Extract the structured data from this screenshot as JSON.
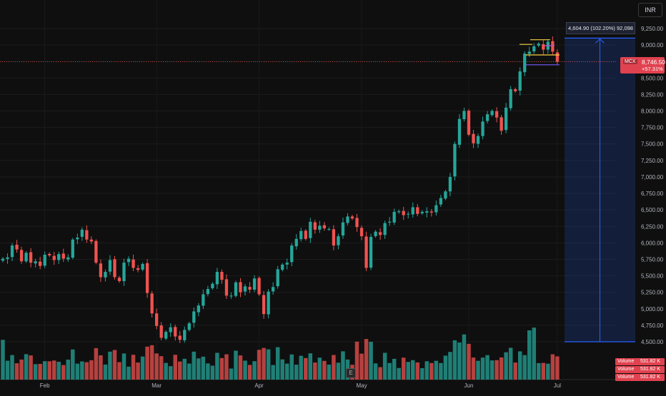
{
  "currency_label": "INR",
  "symbol": "MCX",
  "last_price": "8,746.50",
  "last_change": "+57.31%",
  "measure_label": "4,604.90 (102.20%) 92,098",
  "volume_tags": [
    {
      "label": "Volume",
      "value": "531.82 K"
    },
    {
      "label": "Volume",
      "value": "531.82 K"
    },
    {
      "label": "Volume",
      "value": "531.82 K"
    }
  ],
  "earnings_icon": "E",
  "colors": {
    "up": "#26a69a",
    "down": "#ef5350",
    "measure": "#2962ff",
    "background": "#0f0f0f"
  },
  "chart_data": {
    "type": "candlestick",
    "y_ticks": [
      "4,500.00",
      "4,750.00",
      "5,000.00",
      "5,250.00",
      "5,500.00",
      "5,750.00",
      "6,000.00",
      "6,250.00",
      "6,500.00",
      "6,750.00",
      "7,000.00",
      "7,250.00",
      "7,500.00",
      "7,750.00",
      "8,000.00",
      "8,250.00",
      "8,500.00",
      "8,750.00",
      "9,000.00",
      "9,250.00"
    ],
    "y_tick_values": [
      4500,
      4750,
      5000,
      5250,
      5500,
      5750,
      6000,
      6250,
      6500,
      6750,
      7000,
      7250,
      7500,
      7750,
      8000,
      8250,
      8500,
      8750,
      9000,
      9250
    ],
    "x_labels": [
      "Feb",
      "Mar",
      "Apr",
      "May",
      "Jun",
      "Jul"
    ],
    "x_label_candle_index": [
      9,
      33,
      55,
      77,
      100,
      119
    ],
    "ylim": [
      4300,
      9350
    ],
    "grid": true,
    "measure_range": [
      4500,
      9105
    ],
    "closes": [
      5760,
      5780,
      5960,
      5900,
      5720,
      5850,
      5700,
      5720,
      5650,
      5820,
      5810,
      5740,
      5830,
      5760,
      5780,
      6050,
      6080,
      6200,
      6050,
      6020,
      5700,
      5480,
      5560,
      5740,
      5480,
      5420,
      5700,
      5760,
      5620,
      5590,
      5680,
      5240,
      4930,
      4740,
      4560,
      4650,
      4720,
      4580,
      4530,
      4680,
      4780,
      4960,
      5050,
      5220,
      5300,
      5380,
      5560,
      5440,
      5200,
      5200,
      5400,
      5250,
      5340,
      5290,
      5460,
      5220,
      4920,
      5260,
      5330,
      5600,
      5670,
      5700,
      5960,
      6060,
      6180,
      6060,
      6320,
      6200,
      6260,
      6220,
      6210,
      5960,
      6100,
      6310,
      6400,
      6370,
      6240,
      6100,
      5620,
      6090,
      6170,
      6120,
      6300,
      6320,
      6470,
      6480,
      6420,
      6440,
      6540,
      6440,
      6470,
      6480,
      6460,
      6570,
      6680,
      6780,
      7000,
      7500,
      7880,
      8000,
      7640,
      7510,
      7620,
      7840,
      7950,
      8000,
      7900,
      7700,
      8050,
      8330,
      8300,
      8600,
      8870,
      8900,
      8980,
      9020,
      8930,
      9050,
      8900,
      8746.5
    ],
    "volume_units": "K",
    "volume_max": 1200
  }
}
